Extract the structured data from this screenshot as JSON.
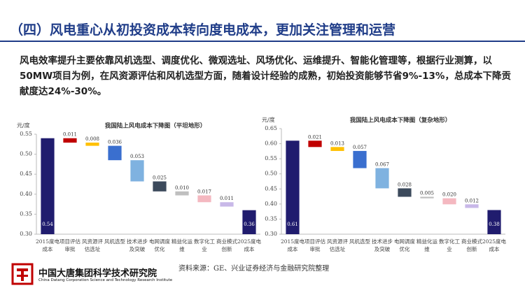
{
  "header": {
    "title": "（四）风电重心从初投资成本转向度电成本，更加关注管理和运营"
  },
  "body": {
    "text": "风电效率提升主要依靠风机选型、调度优化、微观选址、风场优化、运维提升、智能化管理等，根据行业测算，以50MW项目为例，在风资源评估和风机选型方面，随着设计经验的成熟，初始投资能够节省9%-13%，总成本下降贡献度达24%-30%。"
  },
  "chart_data": [
    {
      "type": "waterfall",
      "title": "我国陆上风电成本下降图（平坦地形）",
      "y_label": "元/度",
      "categories": [
        "2015度电成本",
        "项目评估审批",
        "风资源评估选址",
        "风机选型",
        "技术进步及突破",
        "电网调度优化",
        "精益化运维",
        "数字化工业",
        "商业模式创新",
        "2025度电成本"
      ],
      "measure": [
        "absolute",
        "decrease",
        "decrease",
        "decrease",
        "decrease",
        "decrease",
        "decrease",
        "decrease",
        "decrease",
        "absolute"
      ],
      "values": [
        0.54,
        0.011,
        0.008,
        0.036,
        0.053,
        0.025,
        0.01,
        0.017,
        0.011,
        0.36
      ],
      "value_labels": [
        "0.54",
        "0.011",
        "0.008",
        "0.036",
        "0.053",
        "0.025",
        "0.010",
        "0.017",
        "0.011",
        "0.36"
      ],
      "colors": [
        "#201c6e",
        "#c00000",
        "#ffc000",
        "#3a6fcf",
        "#7fb2e0",
        "#3c4a5c",
        "#bfbfbf",
        "#f4b8c0",
        "#c8b8e8",
        "#201c6e"
      ],
      "ylim": [
        0.3,
        0.55
      ],
      "yticks": [
        {
          "value": 0.3,
          "label": "0.30"
        },
        0.35,
        {
          "value": 0.4,
          "label": "0.40"
        },
        0.45,
        {
          "value": 0.5,
          "label": "0.50"
        },
        0.55
      ]
    },
    {
      "type": "waterfall",
      "title": "我国陆上风电成本下降图（复杂地形）",
      "y_label": "元/度",
      "categories": [
        "2015度电成本",
        "项目评估审批",
        "风资源评估选址",
        "风机选型",
        "技术进步及突破",
        "电网调度优化",
        "精益化运维",
        "数字化工业",
        "商业模式创新",
        "2025度电成本"
      ],
      "measure": [
        "absolute",
        "decrease",
        "decrease",
        "decrease",
        "decrease",
        "decrease",
        "decrease",
        "decrease",
        "decrease",
        "absolute"
      ],
      "values": [
        0.61,
        0.021,
        0.013,
        0.057,
        0.067,
        0.028,
        0.005,
        0.02,
        0.012,
        0.38
      ],
      "value_labels": [
        "0.61",
        "0.021",
        "0.013",
        "0.057",
        "0.067",
        "0.028",
        "0.005",
        "0.020",
        "0.012",
        "0.38"
      ],
      "colors": [
        "#201c6e",
        "#c00000",
        "#ffc000",
        "#3a6fcf",
        "#7fb2e0",
        "#3c4a5c",
        "#bfbfbf",
        "#f4b8c0",
        "#c8b8e8",
        "#201c6e"
      ],
      "ylim": [
        0.3,
        0.65
      ],
      "yticks": [
        {
          "value": 0.3,
          "label": "0.30"
        },
        0.35,
        {
          "value": 0.4,
          "label": "0.40"
        },
        0.45,
        {
          "value": 0.5,
          "label": "0.50"
        },
        0.55,
        {
          "value": 0.6,
          "label": "0.60"
        },
        0.65
      ]
    }
  ],
  "source": "资料来源：GE、兴业证券经济与金融研究院整理",
  "logo": {
    "name_cn": "中国大唐集团科学技术研究院",
    "name_en": "China Datang Corporation Science and Technology Research Institute"
  }
}
